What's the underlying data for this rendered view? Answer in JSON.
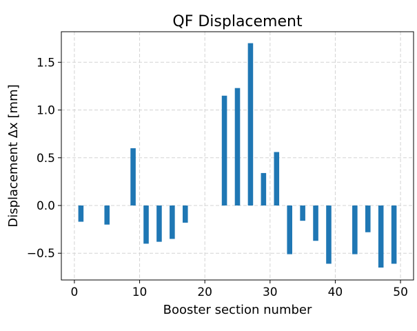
{
  "chart_data": {
    "type": "bar",
    "title": "QF Displacement",
    "xlabel": "Booster section number",
    "ylabel": "Displacement Δx [mm]",
    "xlim": [
      -2,
      52
    ],
    "ylim": [
      -0.78,
      1.82
    ],
    "x_ticks": [
      0,
      10,
      20,
      30,
      40,
      50
    ],
    "x_tick_labels": [
      "0",
      "10",
      "20",
      "30",
      "40",
      "50"
    ],
    "y_ticks": [
      -0.5,
      0.0,
      0.5,
      1.0,
      1.5
    ],
    "y_tick_labels": [
      "−0.5",
      "0.0",
      "0.5",
      "1.0",
      "1.5"
    ],
    "grid": true,
    "bar_color": "#1f77b4",
    "x": [
      1,
      5,
      9,
      11,
      13,
      15,
      17,
      23,
      25,
      27,
      29,
      31,
      33,
      35,
      37,
      39,
      43,
      45,
      47,
      49
    ],
    "values": [
      -0.17,
      -0.2,
      0.6,
      -0.4,
      -0.38,
      -0.35,
      -0.18,
      1.15,
      1.23,
      1.7,
      0.34,
      0.56,
      -0.51,
      -0.16,
      -0.37,
      -0.61,
      -0.51,
      -0.28,
      -0.65,
      -0.61
    ]
  }
}
